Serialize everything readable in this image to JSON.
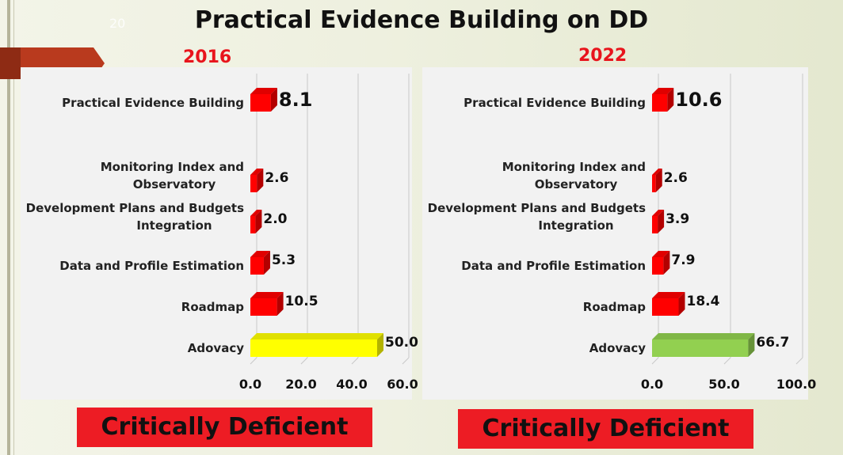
{
  "slide": {
    "title": "Practical Evidence Building on DD",
    "page_number": "20"
  },
  "colors": {
    "bar_red": "#ff0000",
    "bar_yellow": "#ffff00",
    "bar_green": "#92d050",
    "verdict_bg": "#ed1c24",
    "year_text": "#e8141c"
  },
  "chart_data": [
    {
      "type": "bar",
      "orientation": "horizontal",
      "year": "2016",
      "categories": [
        "Adovacy",
        "Roadmap",
        "Data and Profile Estimation",
        "Development Plans and Budgets Integration",
        "Monitoring Index and Observatory",
        "Practical Evidence Building"
      ],
      "category_lines": [
        [
          "Adovacy"
        ],
        [
          "Roadmap"
        ],
        [
          "Data and Profile Estimation"
        ],
        [
          "Development Plans and Budgets",
          "Integration"
        ],
        [
          "Monitoring Index and",
          "Observatory"
        ],
        [
          "Practical Evidence Building"
        ]
      ],
      "values": [
        50.0,
        10.5,
        5.3,
        2.0,
        2.6,
        8.1
      ],
      "value_labels": [
        "50.0",
        "10.5",
        "5.3",
        "2.0",
        "2.6",
        "8.1"
      ],
      "bar_colors": [
        "#ffff00",
        "#ff0000",
        "#ff0000",
        "#ff0000",
        "#ff0000",
        "#ff0000"
      ],
      "xlim": [
        0,
        60
      ],
      "xticks": [
        "0.0",
        "20.0",
        "40.0",
        "60.0"
      ],
      "xtick_values": [
        0,
        20,
        40,
        60
      ],
      "grid": true,
      "verdict": "Critically Deficient"
    },
    {
      "type": "bar",
      "orientation": "horizontal",
      "year": "2022",
      "categories": [
        "Adovacy",
        "Roadmap",
        "Data and Profile Estimation",
        "Development Plans and Budgets Integration",
        "Monitoring Index and Observatory",
        "Practical Evidence Building"
      ],
      "category_lines": [
        [
          "Adovacy"
        ],
        [
          "Roadmap"
        ],
        [
          "Data and Profile Estimation"
        ],
        [
          "Development Plans and Budgets",
          "Integration"
        ],
        [
          "Monitoring Index and",
          "Observatory"
        ],
        [
          "Practical Evidence Building"
        ]
      ],
      "values": [
        66.7,
        18.4,
        7.9,
        3.9,
        2.6,
        10.6
      ],
      "value_labels": [
        "66.7",
        "18.4",
        "7.9",
        "3.9",
        "2.6",
        "10.6"
      ],
      "bar_colors": [
        "#92d050",
        "#ff0000",
        "#ff0000",
        "#ff0000",
        "#ff0000",
        "#ff0000"
      ],
      "xlim": [
        0,
        100
      ],
      "xticks": [
        "0.0",
        "50.0",
        "100.0"
      ],
      "xtick_values": [
        0,
        50,
        100
      ],
      "grid": true,
      "verdict": "Critically Deficient"
    }
  ]
}
